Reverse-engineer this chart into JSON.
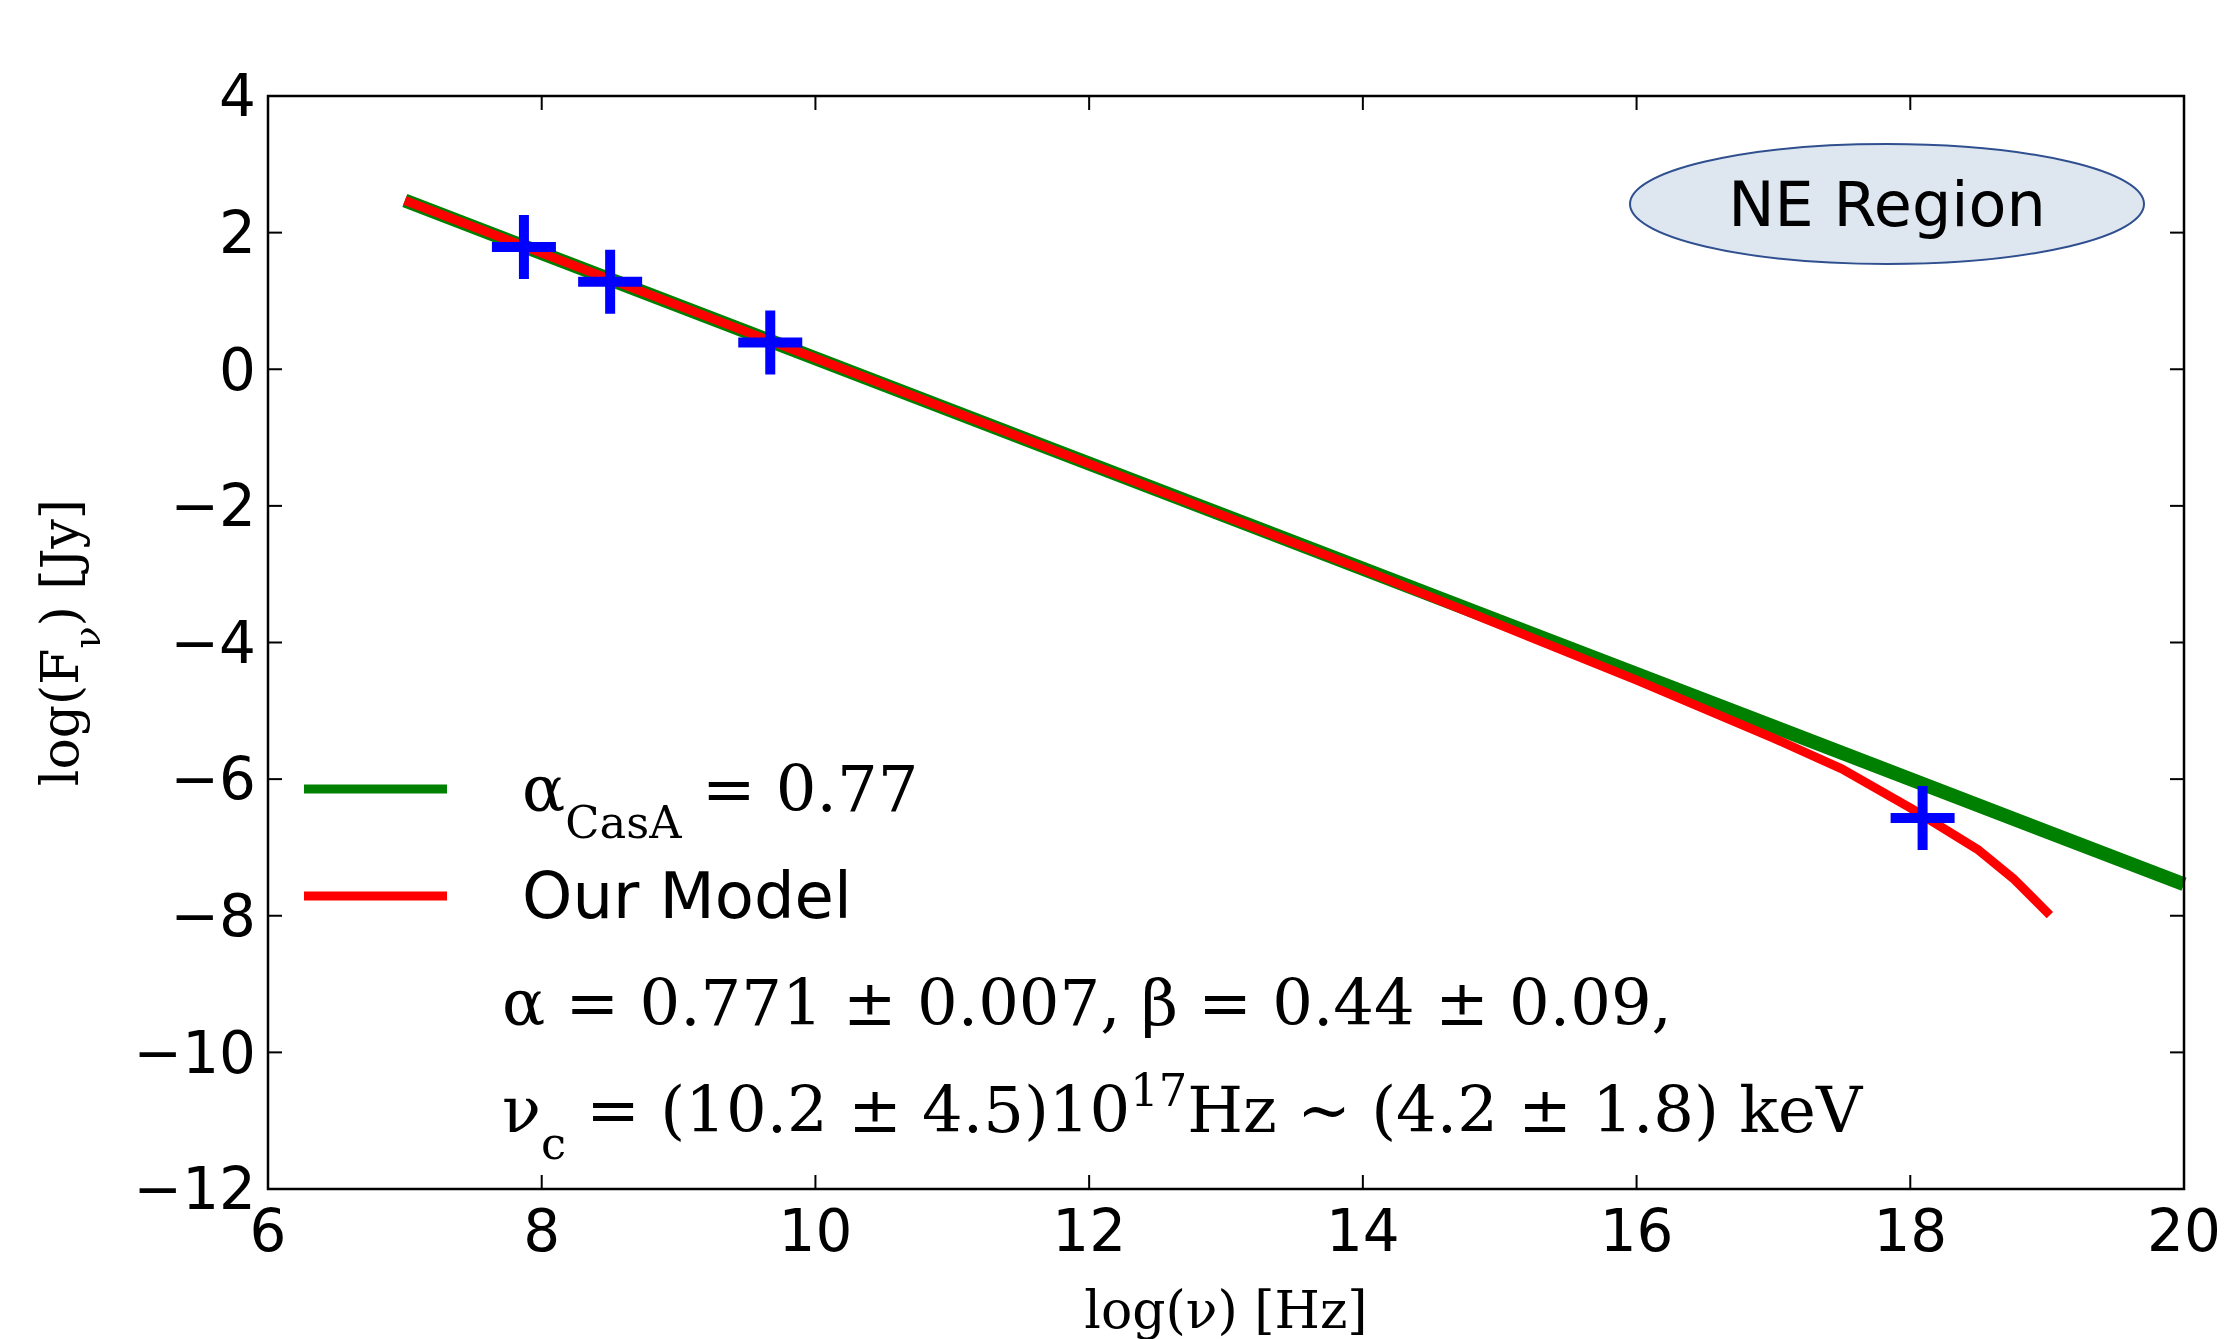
{
  "chart_data": {
    "type": "line",
    "xlabel": "log(ν) [Hz]",
    "ylabel": "log(F$_{ν}$) [Jy]",
    "xlim": [
      6,
      20
    ],
    "ylim": [
      -12,
      4
    ],
    "xticks": [
      6,
      8,
      10,
      12,
      14,
      16,
      18,
      20
    ],
    "yticks": [
      -12,
      -10,
      -8,
      -6,
      -4,
      -2,
      0,
      2,
      4
    ],
    "grid": false,
    "legend": "bottom left",
    "series": [
      {
        "name": "α$_{CasA}$ = 0.77",
        "color": "#008000",
        "x": [
          7,
          20
        ],
        "values": [
          2.47,
          -7.54
        ]
      },
      {
        "name": "Our Model",
        "color": "#ff0000",
        "x": [
          7,
          10,
          14,
          16,
          17,
          17.5,
          18,
          18.5,
          18.75,
          19.02
        ],
        "values": [
          2.47,
          0.16,
          -2.93,
          -4.55,
          -5.4,
          -5.85,
          -6.42,
          -7.04,
          -7.45,
          -7.99
        ]
      },
      {
        "color": "#0000ff",
        "type": "scatter",
        "marker": "cross",
        "x": [
          7.87,
          8.5,
          9.67,
          18.09
        ],
        "values": [
          1.79,
          1.28,
          0.39,
          -6.57
        ]
      }
    ],
    "annotations": [
      "NE Region",
      "α = 0.771 ± 0.007,  β = 0.44 ± 0.09,",
      "ν$_{c}$ = (10.2 ± 4.5)10$^{17}$Hz ~ (4.2 ± 1.8) keV"
    ]
  }
}
